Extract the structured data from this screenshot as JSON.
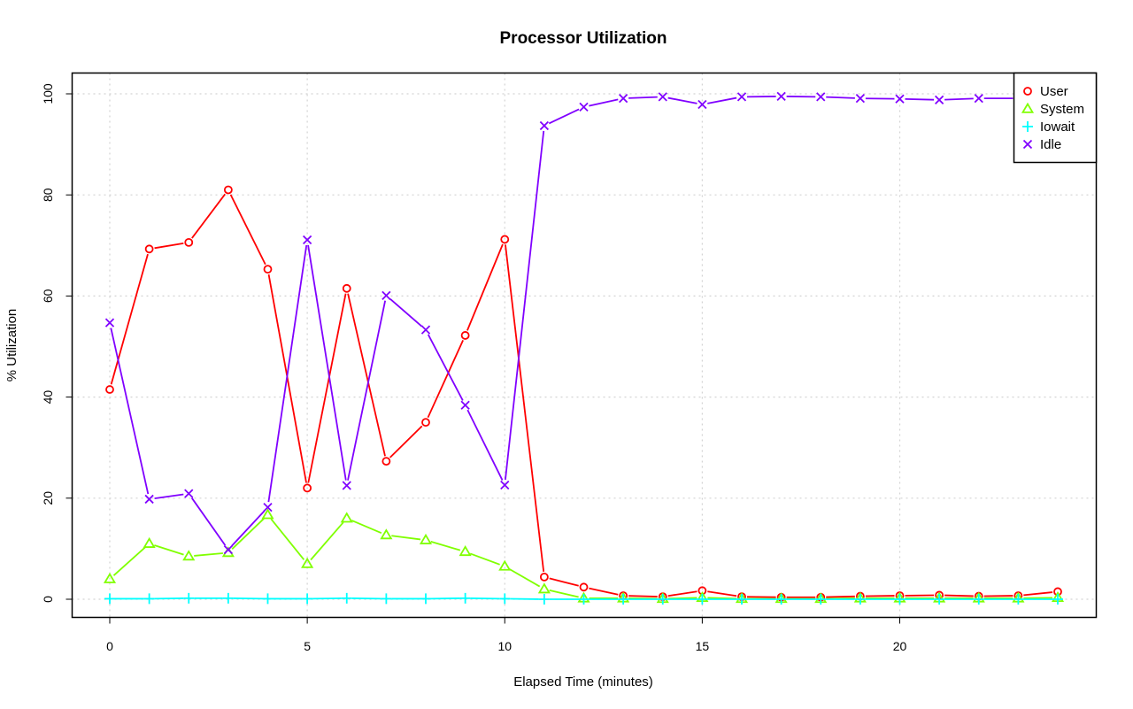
{
  "chart_data": {
    "type": "line",
    "title": "Processor Utilization",
    "xlabel": "Elapsed Time (minutes)",
    "ylabel": "% Utilization",
    "xlim": [
      0,
      24
    ],
    "ylim": [
      0,
      100
    ],
    "xticks": [
      0,
      5,
      10,
      15,
      20
    ],
    "yticks": [
      0,
      20,
      40,
      60,
      80,
      100
    ],
    "grid": true,
    "legend_position": "top-right",
    "x": [
      0,
      1,
      2,
      3,
      4,
      5,
      6,
      7,
      8,
      9,
      10,
      11,
      12,
      13,
      14,
      15,
      16,
      17,
      18,
      19,
      20,
      21,
      22,
      23,
      24
    ],
    "series": [
      {
        "name": "User",
        "color": "#ff0000",
        "marker": "circle",
        "values": [
          41.5,
          69.3,
          70.6,
          81.0,
          65.3,
          22.0,
          61.5,
          27.3,
          35.0,
          52.2,
          71.2,
          4.4,
          2.4,
          0.7,
          0.5,
          1.7,
          0.5,
          0.4,
          0.4,
          0.6,
          0.7,
          0.8,
          0.6,
          0.7,
          1.5
        ]
      },
      {
        "name": "System",
        "color": "#80ff00",
        "marker": "triangle",
        "values": [
          4.0,
          11.0,
          8.5,
          9.2,
          16.7,
          7.0,
          16.0,
          12.7,
          11.7,
          9.4,
          6.5,
          2.0,
          0.2,
          0.2,
          0.1,
          0.3,
          0.1,
          0.1,
          0.1,
          0.2,
          0.2,
          0.2,
          0.2,
          0.2,
          0.3
        ]
      },
      {
        "name": "Iowait",
        "color": "#00ffff",
        "marker": "plus",
        "values": [
          0.1,
          0.1,
          0.2,
          0.2,
          0.1,
          0.1,
          0.2,
          0.1,
          0.1,
          0.2,
          0.1,
          0.0,
          0.0,
          0.0,
          0.0,
          0.0,
          0.0,
          0.0,
          0.0,
          0.0,
          0.0,
          0.0,
          0.0,
          0.0,
          0.0
        ]
      },
      {
        "name": "Idle",
        "color": "#8000ff",
        "marker": "cross",
        "values": [
          54.7,
          19.8,
          20.9,
          9.8,
          18.2,
          71.1,
          22.5,
          60.1,
          53.3,
          38.4,
          22.6,
          93.7,
          97.4,
          99.1,
          99.4,
          97.9,
          99.4,
          99.5,
          99.4,
          99.1,
          99.0,
          98.8,
          99.1,
          99.1,
          98.1
        ]
      }
    ]
  }
}
